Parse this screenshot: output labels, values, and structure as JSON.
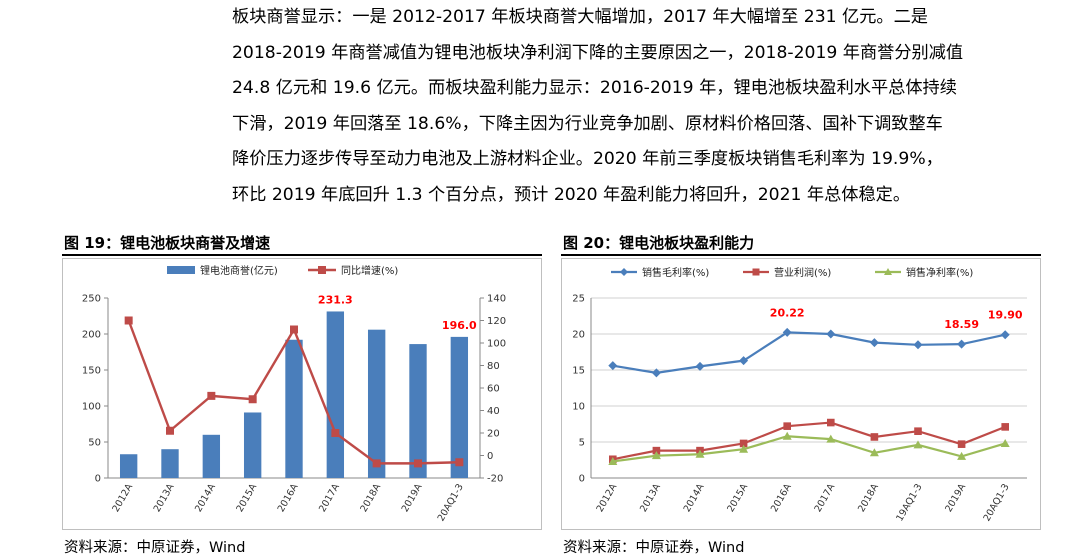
{
  "paragraph": [
    "板块商誉显示：一是 2012-2017 年板块商誉大幅增加，2017 年大幅增至 231 亿元。二是",
    "2018-2019 年商誉减值为锂电池板块净利润下降的主要原因之一，2018-2019 年商誉分别减值",
    "24.8 亿元和 19.6 亿元。而板块盈利能力显示：2016-2019 年，锂电池板块盈利水平总体持续",
    "下滑，2019 年回落至 18.6%，下降主因为行业竞争加剧、原材料价格回落、国补下调致整车",
    "降价压力逐步传导至动力电池及上游材料企业。2020 年前三季度板块销售毛利率为 19.9%，",
    "环比 2019 年底回升 1.3 个百分点，预计 2020 年盈利能力将回升，2021 年总体稳定。"
  ],
  "figure19": {
    "title": "图 19：锂电池板块商誉及增速",
    "source": "资料来源：中原证券，Wind"
  },
  "figure20": {
    "title": "图 20：锂电池板块盈利能力",
    "source": "资料来源：中原证券，Wind"
  },
  "colors": {
    "bar": "#4a7ebb",
    "growth": "#be4b48",
    "gross": "#4a7ebb",
    "operating": "#be4b48",
    "net": "#9bbb59",
    "annotation": "#ff0000"
  },
  "chart_data": [
    {
      "id": "fig19",
      "type": "bar",
      "title": "图 19：锂电池板块商誉及增速",
      "categories": [
        "2012A",
        "2013A",
        "2014A",
        "2015A",
        "2016A",
        "2017A",
        "2018A",
        "2019A",
        "20AQ1-3"
      ],
      "series": [
        {
          "name": "锂电池商誉(亿元)",
          "type": "bar",
          "axis": "left",
          "values": [
            33,
            40,
            60,
            91,
            192,
            231.3,
            206,
            186,
            196.0
          ]
        },
        {
          "name": "同比增速(%)",
          "type": "line",
          "axis": "right",
          "values": [
            120,
            22,
            53,
            50,
            112,
            20,
            -7,
            -7,
            -6
          ]
        }
      ],
      "ylim_left": [
        0,
        250
      ],
      "yticks_left": [
        0,
        50,
        100,
        150,
        200,
        250
      ],
      "ylim_right": [
        -20,
        140
      ],
      "yticks_right": [
        -20,
        0,
        20,
        40,
        60,
        80,
        100,
        120,
        140
      ],
      "annotations": [
        {
          "text": "231.3",
          "category_index": 5,
          "series": 0
        },
        {
          "text": "196.0",
          "category_index": 8,
          "series": 0
        }
      ],
      "legend": "top"
    },
    {
      "id": "fig20",
      "type": "line",
      "title": "图 20：锂电池板块盈利能力",
      "categories": [
        "2012A",
        "2013A",
        "2014A",
        "2015A",
        "2016A",
        "2017A",
        "2018A",
        "19AQ1-3",
        "2019A",
        "20AQ1-3"
      ],
      "series": [
        {
          "name": "销售毛利率(%)",
          "values": [
            15.6,
            14.6,
            15.5,
            16.3,
            20.22,
            20.0,
            18.8,
            18.5,
            18.59,
            19.9
          ]
        },
        {
          "name": "营业利润(%)",
          "values": [
            2.6,
            3.8,
            3.8,
            4.8,
            7.2,
            7.7,
            5.7,
            6.5,
            4.7,
            7.1
          ]
        },
        {
          "name": "销售净利率(%)",
          "values": [
            2.3,
            3.1,
            3.3,
            4.0,
            5.8,
            5.4,
            3.5,
            4.6,
            3.0,
            4.8
          ]
        }
      ],
      "ylim": [
        0,
        25
      ],
      "yticks": [
        0,
        5,
        10,
        15,
        20,
        25
      ],
      "grid": true,
      "annotations": [
        {
          "text": "20.22",
          "category_index": 4,
          "series": 0
        },
        {
          "text": "18.59",
          "category_index": 8,
          "series": 0
        },
        {
          "text": "19.90",
          "category_index": 9,
          "series": 0
        }
      ],
      "legend": "top"
    }
  ]
}
